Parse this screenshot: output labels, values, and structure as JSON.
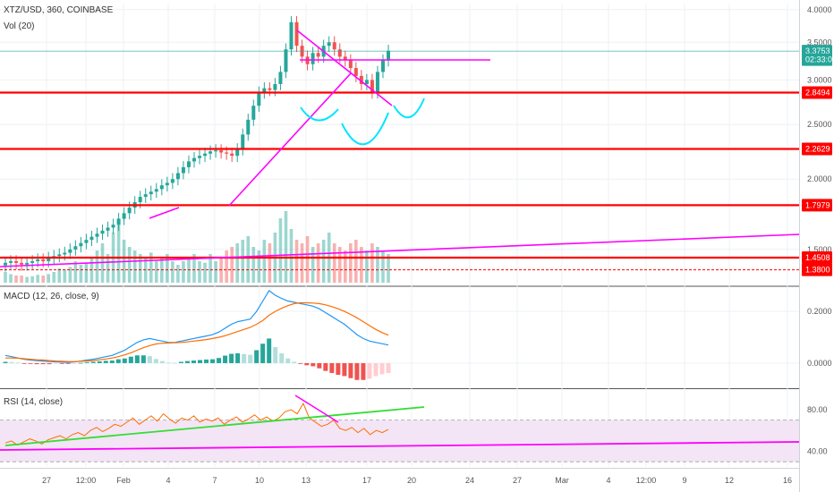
{
  "header": {
    "symbol": "XTZ/USD, 360, COINBASE",
    "vol": "Vol (20)",
    "macd": "MACD (12, 26, close, 9)",
    "rsi": "RSI (14, close)"
  },
  "colors": {
    "up": "#26a69a",
    "down": "#ef5350",
    "level": "#ff0000",
    "trend": "#ff00ff",
    "rsi_trend": "#33dd33",
    "cup": "#00e5ff",
    "macd": "#2196f3",
    "signal": "#ff6d00",
    "rsi": "#ff6d00",
    "rsi_band": "#f3e5f5",
    "grid": "#eef0f4"
  },
  "chart_data": [
    {
      "type": "candlestick",
      "panel": "price",
      "ylim": [
        1.3,
        4.1
      ],
      "yscale": "log",
      "y_ticks": [
        "4.0000",
        "3.5000",
        "3.0000",
        "2.5000",
        "2.0000",
        "1.5000"
      ],
      "y_tick_values": [
        4.0,
        3.5,
        3.0,
        2.5,
        2.0,
        1.5
      ],
      "price_tags": [
        {
          "label": "3.3753",
          "value": 3.3753,
          "color": "#26a69a"
        },
        {
          "label": "02:33:05",
          "value": 3.26,
          "color": "#26a69a"
        },
        {
          "label": "2.8494",
          "value": 2.8494,
          "color": "#ff0000"
        },
        {
          "label": "2.2629",
          "value": 2.2629,
          "color": "#ff0000"
        },
        {
          "label": "1.7979",
          "value": 1.7979,
          "color": "#ff0000"
        },
        {
          "label": "1.4508",
          "value": 1.4508,
          "color": "#ff0000"
        },
        {
          "label": "1.3800",
          "value": 1.38,
          "color": "#ff0000"
        }
      ],
      "horizontal_levels": [
        2.8494,
        2.2629,
        1.7979,
        1.4508
      ],
      "dashed_level": 1.38,
      "close_series": [
        1.42,
        1.43,
        1.42,
        1.41,
        1.42,
        1.43,
        1.44,
        1.43,
        1.45,
        1.46,
        1.47,
        1.48,
        1.5,
        1.52,
        1.54,
        1.56,
        1.58,
        1.6,
        1.62,
        1.64,
        1.66,
        1.7,
        1.74,
        1.78,
        1.82,
        1.86,
        1.88,
        1.9,
        1.92,
        1.95,
        1.97,
        2.0,
        2.05,
        2.1,
        2.15,
        2.18,
        2.2,
        2.22,
        2.24,
        2.25,
        2.23,
        2.22,
        2.2,
        2.26,
        2.4,
        2.55,
        2.7,
        2.85,
        2.9,
        2.88,
        2.95,
        3.1,
        3.4,
        3.8,
        3.45,
        3.3,
        3.2,
        3.35,
        3.3,
        3.45,
        3.5,
        3.4,
        3.3,
        3.25,
        3.15,
        3.05,
        2.95,
        3.0,
        2.85,
        3.1,
        3.25,
        3.38
      ],
      "volume": [
        0.15,
        0.12,
        0.1,
        0.1,
        0.08,
        0.09,
        0.11,
        0.1,
        0.12,
        0.15,
        0.2,
        0.18,
        0.22,
        0.3,
        0.25,
        0.28,
        0.35,
        0.45,
        0.55,
        0.4,
        0.7,
        0.9,
        0.6,
        0.5,
        0.45,
        0.4,
        0.35,
        0.42,
        0.3,
        0.35,
        0.4,
        0.3,
        0.25,
        0.3,
        0.35,
        0.4,
        0.3,
        0.28,
        0.4,
        0.3,
        0.35,
        0.45,
        0.5,
        0.55,
        0.6,
        0.65,
        0.5,
        0.45,
        0.6,
        0.55,
        0.7,
        0.9,
        1.0,
        0.75,
        0.6,
        0.55,
        0.65,
        0.5,
        0.55,
        0.6,
        0.7,
        0.55,
        0.5,
        0.45,
        0.55,
        0.6,
        0.5,
        0.45,
        0.55,
        0.5,
        0.45,
        0.4
      ],
      "x_ticks": [
        "27",
        "12:00",
        "Feb",
        "4",
        "7",
        "10",
        "13",
        "17",
        "20",
        "24",
        "27",
        "Mar",
        "4",
        "12:00",
        "9",
        "12",
        "16"
      ]
    },
    {
      "type": "line",
      "panel": "macd",
      "ylim": [
        -0.09,
        0.29
      ],
      "y_ticks": [
        "0.2000",
        "0.0000"
      ],
      "y_tick_values": [
        0.2,
        0.0
      ],
      "series": [
        {
          "values": [
            0.03,
            0.025,
            0.02,
            0.015,
            0.012,
            0.01,
            0.008,
            0.006,
            0.005,
            0.004,
            0.003,
            0.005,
            0.008,
            0.012,
            0.015,
            0.02,
            0.025,
            0.03,
            0.04,
            0.05,
            0.065,
            0.08,
            0.09,
            0.095,
            0.09,
            0.085,
            0.08,
            0.08,
            0.085,
            0.09,
            0.095,
            0.1,
            0.105,
            0.11,
            0.12,
            0.135,
            0.15,
            0.16,
            0.165,
            0.17,
            0.2,
            0.24,
            0.28,
            0.262,
            0.25,
            0.24,
            0.235,
            0.23,
            0.225,
            0.22,
            0.21,
            0.195,
            0.18,
            0.165,
            0.15,
            0.13,
            0.11,
            0.095,
            0.085,
            0.08,
            0.075,
            0.07
          ]
        },
        {
          "values": [
            0.02,
            0.02,
            0.019,
            0.017,
            0.015,
            0.013,
            0.012,
            0.01,
            0.008,
            0.007,
            0.006,
            0.006,
            0.007,
            0.008,
            0.01,
            0.013,
            0.016,
            0.02,
            0.025,
            0.032,
            0.04,
            0.05,
            0.06,
            0.068,
            0.074,
            0.077,
            0.078,
            0.079,
            0.08,
            0.082,
            0.085,
            0.088,
            0.091,
            0.095,
            0.1,
            0.106,
            0.114,
            0.122,
            0.13,
            0.138,
            0.15,
            0.165,
            0.185,
            0.2,
            0.212,
            0.222,
            0.23,
            0.233,
            0.233,
            0.232,
            0.23,
            0.225,
            0.218,
            0.21,
            0.2,
            0.188,
            0.175,
            0.16,
            0.145,
            0.13,
            0.118,
            0.108
          ]
        }
      ],
      "histogram": [
        0.005,
        0.004,
        0.002,
        -0.001,
        -0.003,
        -0.004,
        -0.004,
        -0.004,
        -0.003,
        -0.003,
        -0.003,
        -0.001,
        0.001,
        0.003,
        0.005,
        0.007,
        0.009,
        0.01,
        0.015,
        0.018,
        0.025,
        0.03,
        0.03,
        0.027,
        0.016,
        0.008,
        0.002,
        0.001,
        0.005,
        0.008,
        0.01,
        0.012,
        0.014,
        0.015,
        0.02,
        0.029,
        0.036,
        0.038,
        0.035,
        0.032,
        0.05,
        0.075,
        0.095,
        0.062,
        0.038,
        0.018,
        0.005,
        -0.003,
        -0.008,
        -0.012,
        -0.02,
        -0.03,
        -0.038,
        -0.045,
        -0.05,
        -0.058,
        -0.065,
        -0.065,
        -0.06,
        -0.05,
        -0.043,
        -0.038
      ]
    },
    {
      "type": "line",
      "panel": "rsi",
      "ylim": [
        25,
        98
      ],
      "y_ticks": [
        "80.00",
        "40.00"
      ],
      "y_tick_values": [
        80,
        40
      ],
      "band": [
        30,
        70
      ],
      "series": [
        {
          "values": [
            48,
            50,
            46,
            49,
            52,
            50,
            47,
            51,
            53,
            55,
            52,
            56,
            58,
            55,
            60,
            63,
            59,
            62,
            66,
            64,
            68,
            72,
            66,
            70,
            74,
            69,
            76,
            71,
            67,
            72,
            70,
            74,
            68,
            71,
            69,
            72,
            66,
            70,
            73,
            68,
            71,
            75,
            70,
            73,
            69,
            72,
            78,
            80,
            76,
            86,
            72,
            68,
            64,
            66,
            70,
            62,
            60,
            63,
            58,
            62,
            56,
            60,
            58,
            61
          ]
        }
      ]
    }
  ]
}
